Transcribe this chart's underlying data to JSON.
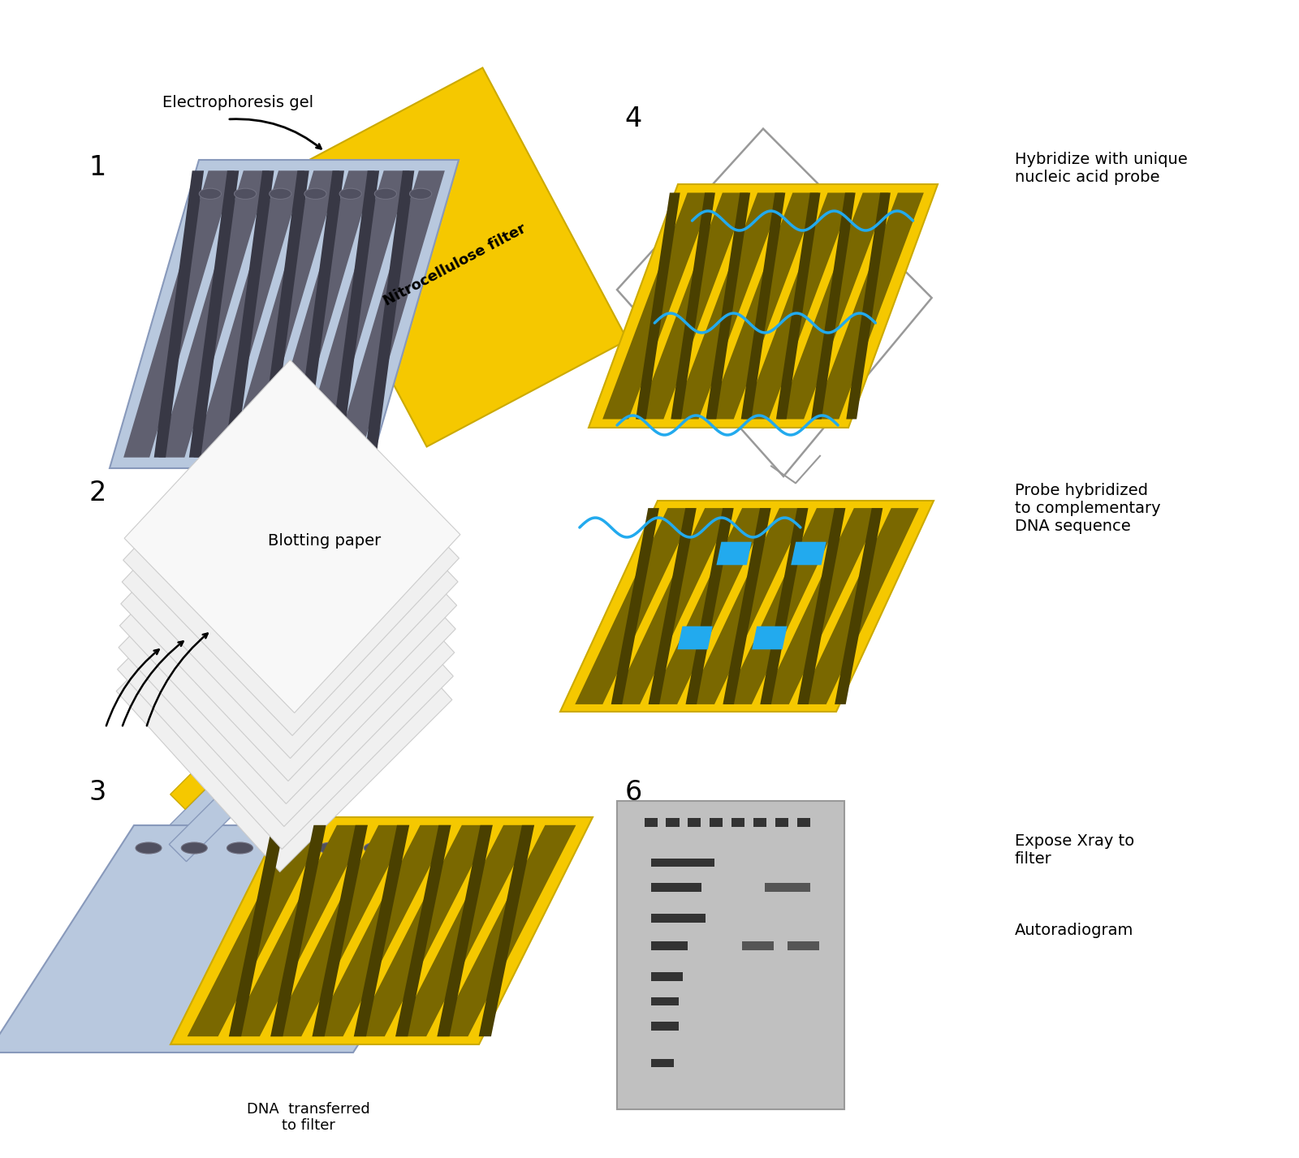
{
  "background_color": "#ffffff",
  "labels": {
    "electrophoresis_gel": "Electrophoresis gel",
    "nitrocellulose_filter": "Nitrocellulose filter",
    "blotting_paper": "Blotting paper",
    "hybridize": "Hybridize with unique\nnucleic acid probe",
    "probe_hybridized": "Probe hybridized\nto complementary\nDNA sequence",
    "expose_xray": "Expose Xray to\nfilter",
    "autoradiogram": "Autoradiogram",
    "dna_transferred": "DNA  transferred\nto filter"
  },
  "colors": {
    "gel_blue": "#b8c8de",
    "gel_blue_edge": "#8899bb",
    "gel_lane_mid": "#606070",
    "gel_lane_dark": "#383845",
    "gel_well": "#505060",
    "yellow": "#f5c800",
    "yellow_lane": "#7a6800",
    "yellow_lane_dark": "#4a4000",
    "white_paper": "#f5f5f5",
    "paper_edge": "#cccccc",
    "blue_layer": "#b8c8de",
    "blue_probe": "#22aaee",
    "xray_bg": "#c0c0c0",
    "xray_band_dark": "#333333",
    "xray_band_med": "#555555",
    "bag_outline": "#999999",
    "arrow_color": "#111111"
  }
}
